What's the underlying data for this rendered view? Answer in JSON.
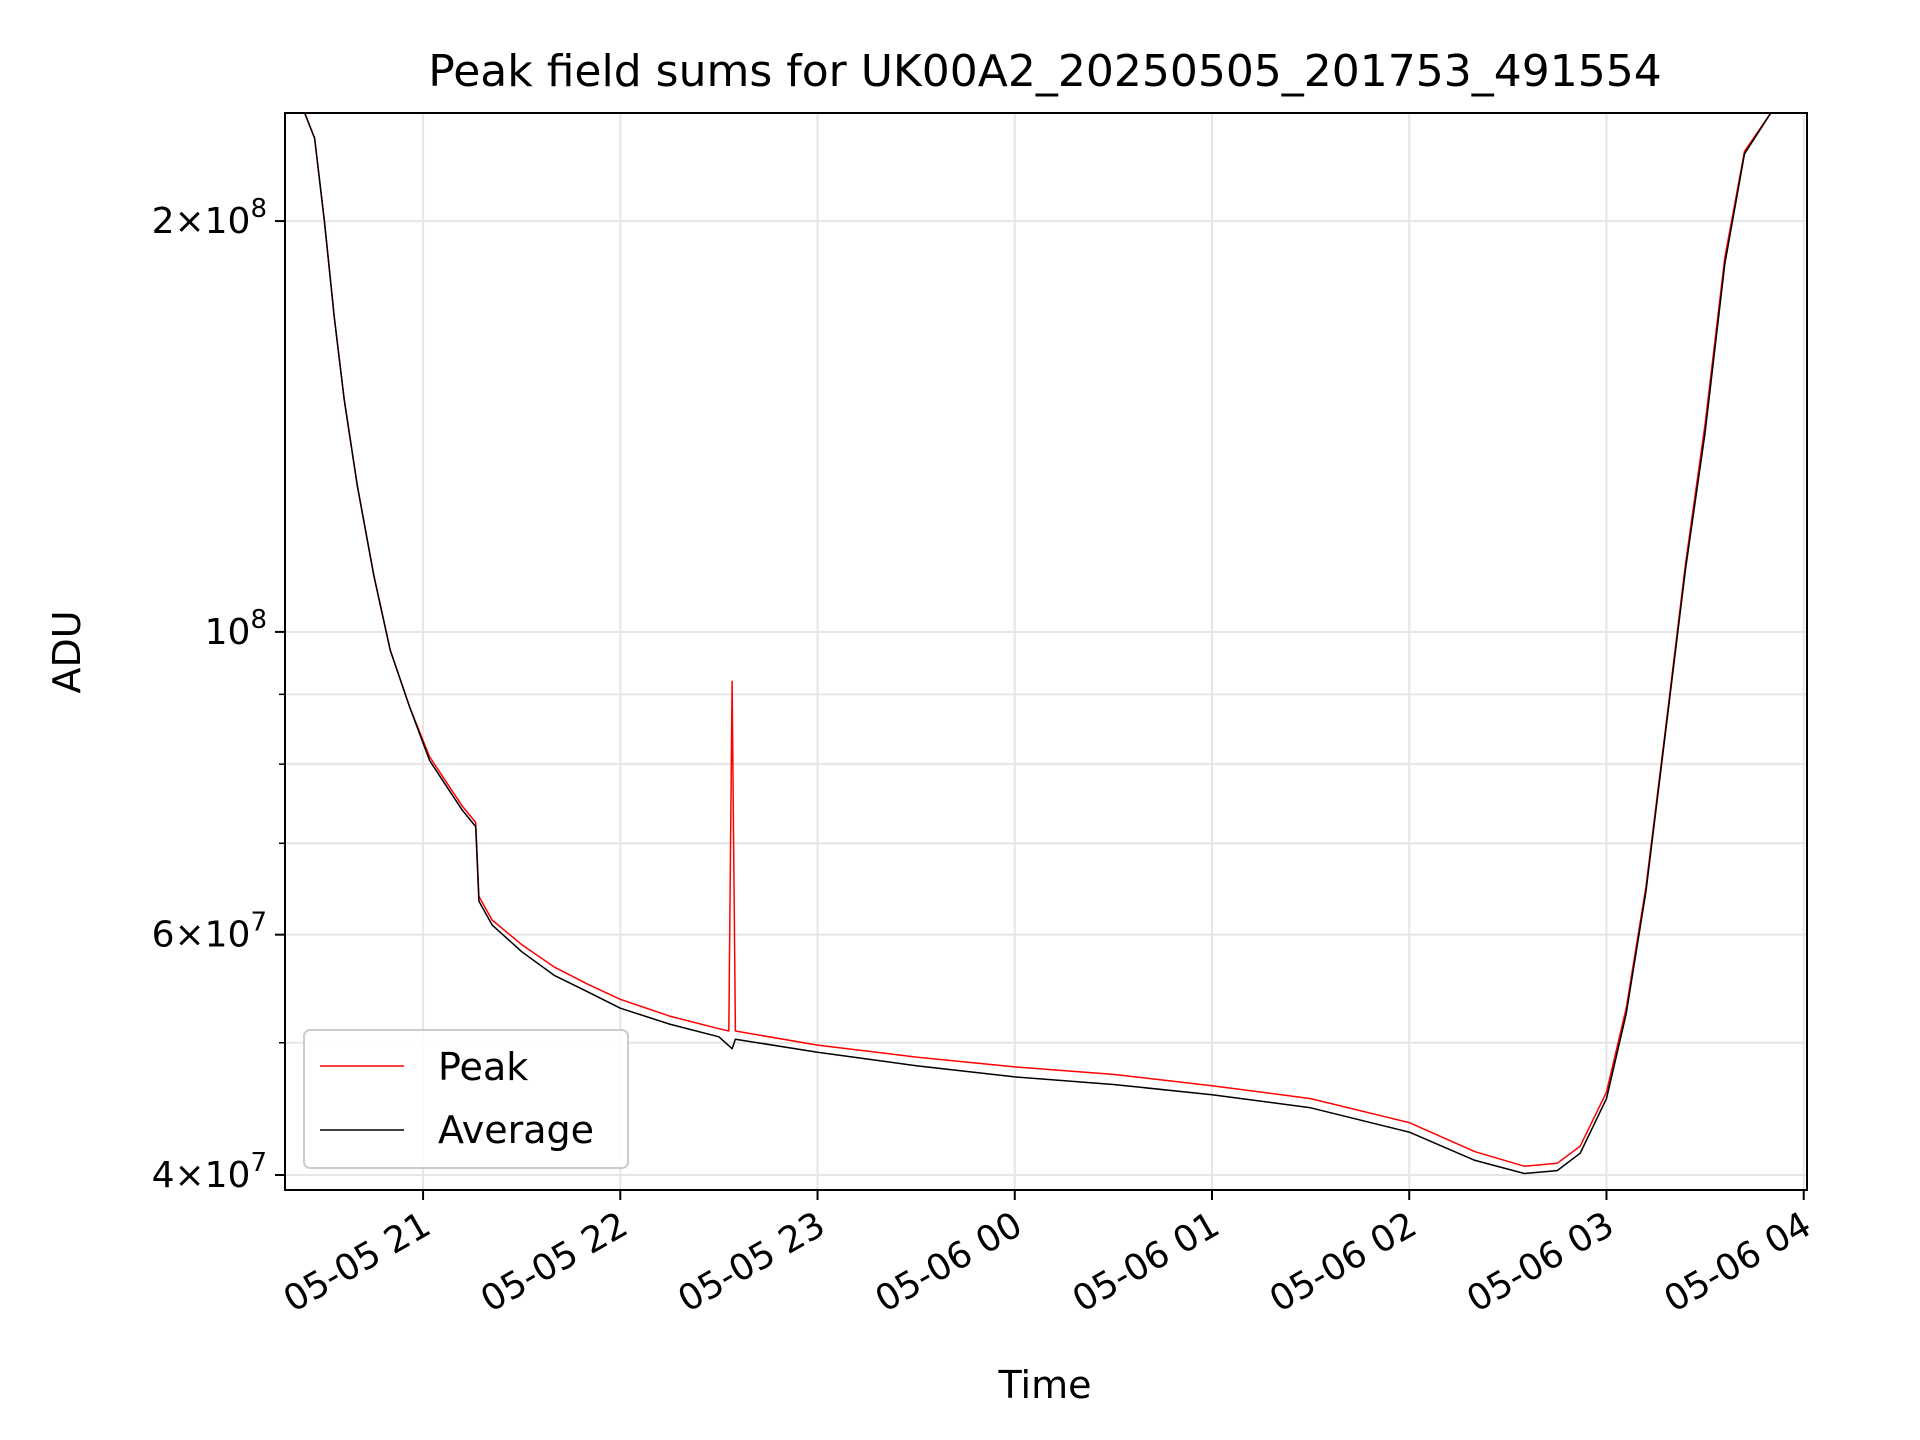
{
  "chart_data": {
    "type": "line",
    "title": "Peak field sums for UK00A2_20250505_201753_491554",
    "xlabel": "Time",
    "ylabel": "ADU",
    "yscale": "log",
    "ylim": [
      39000000,
      240000000
    ],
    "xlim": [
      "2025-05-05 20:18",
      "2025-05-06 04:01"
    ],
    "grid": true,
    "legend_location": "lower-left",
    "x_ticks": [
      {
        "value": "2025-05-05 21:00",
        "label": "05-05 21"
      },
      {
        "value": "2025-05-05 22:00",
        "label": "05-05 22"
      },
      {
        "value": "2025-05-05 23:00",
        "label": "05-05 23"
      },
      {
        "value": "2025-05-06 00:00",
        "label": "05-06 00"
      },
      {
        "value": "2025-05-06 01:00",
        "label": "05-06 01"
      },
      {
        "value": "2025-05-06 02:00",
        "label": "05-06 02"
      },
      {
        "value": "2025-05-06 03:00",
        "label": "05-06 03"
      },
      {
        "value": "2025-05-06 04:00",
        "label": "05-06 04"
      }
    ],
    "y_major_ticks": [
      {
        "value": 40000000,
        "mantissa": "4",
        "exponent": "7"
      },
      {
        "value": 60000000,
        "mantissa": "6",
        "exponent": "7"
      },
      {
        "value": 100000000,
        "mantissa": "",
        "exponent": "8"
      },
      {
        "value": 200000000,
        "mantissa": "2",
        "exponent": "8"
      }
    ],
    "y_minor_ticks": [
      50000000,
      70000000,
      80000000,
      90000000
    ],
    "series": [
      {
        "name": "Peak",
        "color": "#ff0000",
        "points": [
          [
            "2025-05-05 20:18",
            240000000
          ],
          [
            "2025-05-05 20:24",
            240000000
          ],
          [
            "2025-05-05 20:27",
            230000000
          ],
          [
            "2025-05-05 20:30",
            200000000
          ],
          [
            "2025-05-05 20:33",
            170000000
          ],
          [
            "2025-05-05 20:36",
            148000000
          ],
          [
            "2025-05-05 20:40",
            128000000
          ],
          [
            "2025-05-05 20:45",
            110000000
          ],
          [
            "2025-05-05 20:50",
            97000000
          ],
          [
            "2025-05-05 20:56",
            88000000
          ],
          [
            "2025-05-05 21:02",
            81000000
          ],
          [
            "2025-05-05 21:08",
            77000000
          ],
          [
            "2025-05-05 21:12",
            74500000
          ],
          [
            "2025-05-05 21:16",
            72500000
          ],
          [
            "2025-05-05 21:17",
            64000000
          ],
          [
            "2025-05-05 21:21",
            61500000
          ],
          [
            "2025-05-05 21:30",
            59000000
          ],
          [
            "2025-05-05 21:40",
            56800000
          ],
          [
            "2025-05-05 21:50",
            55200000
          ],
          [
            "2025-05-05 22:00",
            53800000
          ],
          [
            "2025-05-05 22:15",
            52300000
          ],
          [
            "2025-05-05 22:30",
            51200000
          ],
          [
            "2025-05-05 22:33",
            51000000
          ],
          [
            "2025-05-05 22:34",
            92000000
          ],
          [
            "2025-05-05 22:35",
            51000000
          ],
          [
            "2025-05-05 23:00",
            49800000
          ],
          [
            "2025-05-05 23:30",
            48800000
          ],
          [
            "2025-05-06 00:00",
            48000000
          ],
          [
            "2025-05-06 00:30",
            47400000
          ],
          [
            "2025-05-06 01:00",
            46500000
          ],
          [
            "2025-05-06 01:30",
            45500000
          ],
          [
            "2025-05-06 02:00",
            43700000
          ],
          [
            "2025-05-06 02:20",
            41600000
          ],
          [
            "2025-05-06 02:35",
            40600000
          ],
          [
            "2025-05-06 02:45",
            40800000
          ],
          [
            "2025-05-06 02:52",
            42000000
          ],
          [
            "2025-05-06 03:00",
            46000000
          ],
          [
            "2025-05-06 03:06",
            53000000
          ],
          [
            "2025-05-06 03:12",
            65000000
          ],
          [
            "2025-05-06 03:18",
            85000000
          ],
          [
            "2025-05-06 03:24",
            112000000
          ],
          [
            "2025-05-06 03:30",
            142000000
          ],
          [
            "2025-05-06 03:36",
            188000000
          ],
          [
            "2025-05-06 03:42",
            225000000
          ],
          [
            "2025-05-06 03:50",
            240000000
          ],
          [
            "2025-05-06 04:01",
            240000000
          ]
        ]
      },
      {
        "name": "Average",
        "color": "#000000",
        "points": [
          [
            "2025-05-05 20:18",
            240000000
          ],
          [
            "2025-05-05 20:24",
            240000000
          ],
          [
            "2025-05-05 20:27",
            230000000
          ],
          [
            "2025-05-05 20:30",
            200000000
          ],
          [
            "2025-05-05 20:33",
            170000000
          ],
          [
            "2025-05-05 20:36",
            148000000
          ],
          [
            "2025-05-05 20:40",
            128000000
          ],
          [
            "2025-05-05 20:45",
            110000000
          ],
          [
            "2025-05-05 20:50",
            97000000
          ],
          [
            "2025-05-05 20:56",
            88000000
          ],
          [
            "2025-05-05 21:02",
            80500000
          ],
          [
            "2025-05-05 21:08",
            76500000
          ],
          [
            "2025-05-05 21:12",
            74000000
          ],
          [
            "2025-05-05 21:16",
            72000000
          ],
          [
            "2025-05-05 21:17",
            63500000
          ],
          [
            "2025-05-05 21:21",
            61000000
          ],
          [
            "2025-05-05 21:30",
            58300000
          ],
          [
            "2025-05-05 21:40",
            56000000
          ],
          [
            "2025-05-05 21:50",
            54500000
          ],
          [
            "2025-05-05 22:00",
            53000000
          ],
          [
            "2025-05-05 22:15",
            51600000
          ],
          [
            "2025-05-05 22:30",
            50500000
          ],
          [
            "2025-05-05 22:34",
            49500000
          ],
          [
            "2025-05-05 22:35",
            50300000
          ],
          [
            "2025-05-05 23:00",
            49200000
          ],
          [
            "2025-05-05 23:30",
            48100000
          ],
          [
            "2025-05-06 00:00",
            47200000
          ],
          [
            "2025-05-06 00:30",
            46600000
          ],
          [
            "2025-05-06 01:00",
            45800000
          ],
          [
            "2025-05-06 01:30",
            44800000
          ],
          [
            "2025-05-06 02:00",
            43000000
          ],
          [
            "2025-05-06 02:20",
            41000000
          ],
          [
            "2025-05-06 02:35",
            40100000
          ],
          [
            "2025-05-06 02:45",
            40300000
          ],
          [
            "2025-05-06 02:52",
            41500000
          ],
          [
            "2025-05-06 03:00",
            45500000
          ],
          [
            "2025-05-06 03:06",
            52500000
          ],
          [
            "2025-05-06 03:12",
            64500000
          ],
          [
            "2025-05-06 03:18",
            84500000
          ],
          [
            "2025-05-06 03:24",
            111000000
          ],
          [
            "2025-05-06 03:30",
            140000000
          ],
          [
            "2025-05-06 03:36",
            186000000
          ],
          [
            "2025-05-06 03:42",
            224000000
          ],
          [
            "2025-05-06 03:50",
            240000000
          ],
          [
            "2025-05-06 04:01",
            240000000
          ]
        ]
      }
    ]
  }
}
